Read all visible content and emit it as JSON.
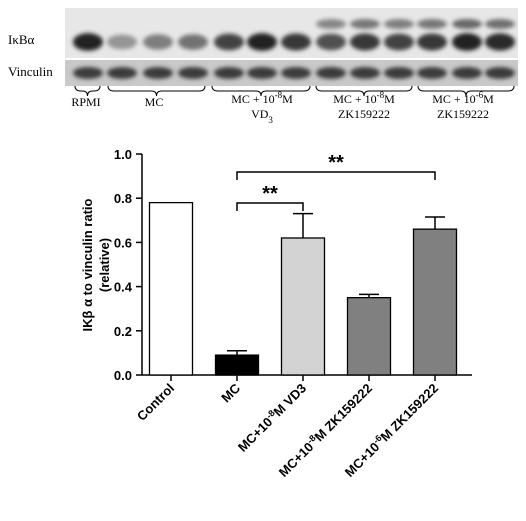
{
  "blot": {
    "row_labels": [
      "IκBα",
      "Vinculin"
    ],
    "group_labels": [
      {
        "lines": [
          "RPMI"
        ]
      },
      {
        "lines": [
          "MC"
        ]
      },
      {
        "lines": [
          "MC + 10-8M",
          "VD3"
        ]
      },
      {
        "lines": [
          "MC + 10-8M",
          "ZK159222"
        ]
      },
      {
        "lines": [
          "MC + 10-6M",
          "ZK159222"
        ]
      }
    ]
  },
  "chart_data": {
    "type": "bar",
    "categories": [
      "Control",
      "MC",
      "MC+10-8M VD3",
      "MC+10-8M ZK159222",
      "MC+10-6M ZK159222"
    ],
    "values": [
      0.78,
      0.09,
      0.62,
      0.35,
      0.66
    ],
    "errors": [
      0,
      0.02,
      0.11,
      0.015,
      0.055
    ],
    "bar_colors": [
      "#ffffff",
      "#000000",
      "#d3d3d3",
      "#808080",
      "#808080"
    ],
    "ylabel_lines": [
      "IKβ α to vinculin ratio",
      "(relative)"
    ],
    "yticks": [
      "0.0",
      "0.2",
      "0.4",
      "0.6",
      "0.8",
      "1.0"
    ],
    "ylim": [
      0,
      1.0
    ],
    "significance": [
      {
        "from": 1,
        "to": 2,
        "label": "**"
      },
      {
        "from": 1,
        "to": 4,
        "label": "**"
      }
    ]
  }
}
